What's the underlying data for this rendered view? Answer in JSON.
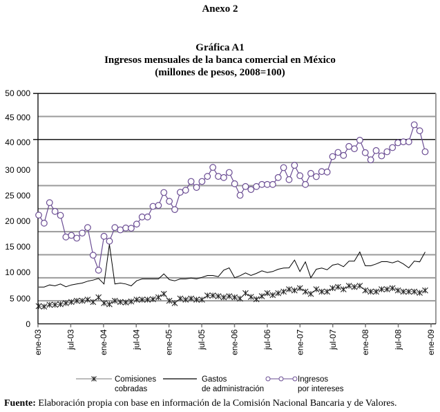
{
  "header": {
    "annex": "Anexo 2"
  },
  "chart_data": {
    "type": "line",
    "supertitle": "Gráfica A1",
    "title": "Ingresos mensuales de la banca comercial en México",
    "subtitle": "(millones de pesos, 2008=100)",
    "xlabel": "",
    "ylabel": "",
    "ylim": [
      0,
      50000
    ],
    "grid": true,
    "x_start": "ene-03",
    "x_ticks": [
      "ene-03",
      "jul-03",
      "ene-04",
      "jul-04",
      "ene-05",
      "jul-05",
      "ene-06",
      "jul-06",
      "ene-07",
      "jul-07",
      "ene-08",
      "jul-08",
      "ene-09"
    ],
    "y_tick_labels": [
      "50 000",
      "45 000",
      "40 000",
      "30 000",
      "25 000",
      "20 000",
      "15 000",
      "10 000",
      "5 000",
      "0"
    ],
    "legend_position": "bottom",
    "series": [
      {
        "name": "Comisiones cobradas",
        "legend_lines": [
          "Comisiones",
          "cobradas"
        ],
        "marker": "asterisk",
        "color": "#222222",
        "values": [
          3850,
          3750,
          4150,
          4150,
          4250,
          4500,
          4750,
          5000,
          5000,
          5250,
          4750,
          5750,
          4500,
          4250,
          5000,
          4750,
          4650,
          4850,
          5250,
          5250,
          5250,
          5350,
          5750,
          6500,
          5000,
          4500,
          5500,
          5250,
          5500,
          5250,
          5250,
          6150,
          6150,
          6000,
          5750,
          6000,
          5750,
          5500,
          6650,
          5850,
          5350,
          6000,
          6650,
          6250,
          6650,
          7000,
          7500,
          7250,
          7750,
          7000,
          6500,
          7500,
          7000,
          7000,
          7750,
          8000,
          7500,
          8250,
          8000,
          8250,
          7250,
          7000,
          7000,
          7500,
          7500,
          7750,
          7250,
          7000,
          7000,
          7000,
          6750,
          7250
        ]
      },
      {
        "name": "Gastos de administración",
        "legend_lines": [
          "Gastos",
          "de administración"
        ],
        "marker": "none",
        "color": "#000000",
        "values": [
          8000,
          8000,
          8450,
          8250,
          8650,
          8050,
          8450,
          8650,
          8850,
          9250,
          9500,
          9850,
          8650,
          17250,
          8650,
          8850,
          8650,
          8250,
          9350,
          9750,
          9750,
          9750,
          9750,
          10850,
          9600,
          9350,
          9750,
          9750,
          9950,
          9750,
          10100,
          10500,
          10500,
          10250,
          11650,
          12150,
          10000,
          10450,
          11050,
          10500,
          10950,
          11500,
          11150,
          11350,
          11850,
          12100,
          12150,
          13850,
          11350,
          13450,
          10000,
          11850,
          12100,
          11750,
          12750,
          13000,
          12400,
          13600,
          13600,
          15600,
          12600,
          12600,
          13000,
          13500,
          13500,
          13250,
          13650,
          13000,
          12150,
          13600,
          13450,
          15600
        ]
      },
      {
        "name": "Ingresos por intereses",
        "legend_lines": [
          "Ingresos",
          "por intereses"
        ],
        "marker": "circle",
        "color": "#6a4c93",
        "values": [
          23600,
          21850,
          26300,
          24400,
          23550,
          18850,
          19200,
          18600,
          19700,
          20900,
          14900,
          11650,
          19000,
          17950,
          20900,
          20400,
          20800,
          20750,
          21650,
          23200,
          23200,
          25500,
          25700,
          28500,
          26600,
          24800,
          28550,
          29000,
          30900,
          29600,
          30900,
          32000,
          33950,
          32000,
          31750,
          32850,
          30400,
          27900,
          29800,
          29150,
          29800,
          30250,
          30250,
          30250,
          31750,
          33900,
          31300,
          34400,
          32150,
          30250,
          32650,
          31950,
          33050,
          32950,
          36300,
          37200,
          36550,
          38500,
          38000,
          39850,
          37150,
          35600,
          37600,
          36450,
          37350,
          38250,
          39300,
          39500,
          39500,
          43200,
          41900,
          37350
        ]
      }
    ]
  },
  "footer": {
    "source_label": "Fuente:",
    "source_text": " Elaboración propia con base en información de la Comisión Nacional Bancaria y de Valores."
  }
}
